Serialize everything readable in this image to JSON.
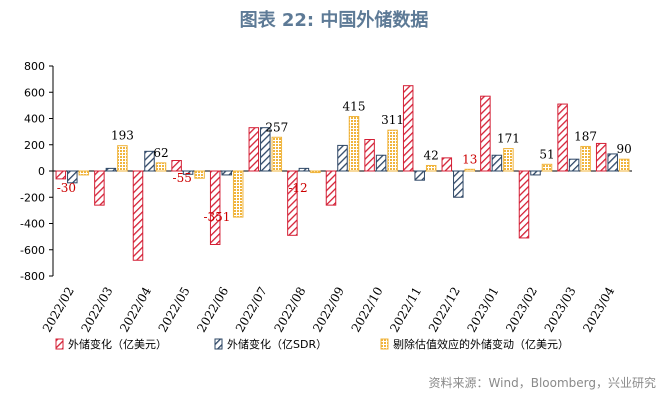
{
  "title": "图表 22: 中国外储数据",
  "source": "资料来源：Wind，Bloomberg，兴业研究",
  "colors": {
    "red": "#d41f35",
    "navy": "#2e4766",
    "yellow": "#f0b43c",
    "label_red": "#cc0000"
  },
  "chart_data": {
    "type": "bar",
    "categories": [
      "2022/02",
      "2022/03",
      "2022/04",
      "2022/05",
      "2022/06",
      "2022/07",
      "2022/08",
      "2022/09",
      "2022/10",
      "2022/11",
      "2022/12",
      "2023/01",
      "2023/02",
      "2023/03",
      "2023/04"
    ],
    "series": [
      {
        "name": "外储变化（亿美元）",
        "values": [
          -60,
          -260,
          -680,
          80,
          -560,
          330,
          -490,
          -260,
          240,
          650,
          100,
          570,
          -510,
          510,
          210
        ]
      },
      {
        "name": "外储变化（亿SDR）",
        "values": [
          -90,
          20,
          150,
          -25,
          -30,
          330,
          20,
          195,
          120,
          -70,
          -200,
          120,
          -30,
          90,
          130
        ]
      },
      {
        "name": "剔除估值效应的外储变动（亿美元）",
        "values": [
          -30,
          193,
          62,
          -55,
          -351,
          257,
          -12,
          415,
          311,
          42,
          13,
          171,
          51,
          187,
          90
        ]
      }
    ],
    "data_labels": [
      "-30",
      "193",
      "62",
      "-55",
      "-351",
      "257",
      "-12",
      "415",
      "311",
      "42",
      "13",
      "171",
      "51",
      "187",
      "90"
    ],
    "ylim": [
      -800,
      800
    ],
    "yticks": [
      "800",
      "600",
      "400",
      "200",
      "0",
      "-200",
      "-400",
      "-600",
      "-800"
    ],
    "legend_position": "bottom",
    "grid": false
  }
}
